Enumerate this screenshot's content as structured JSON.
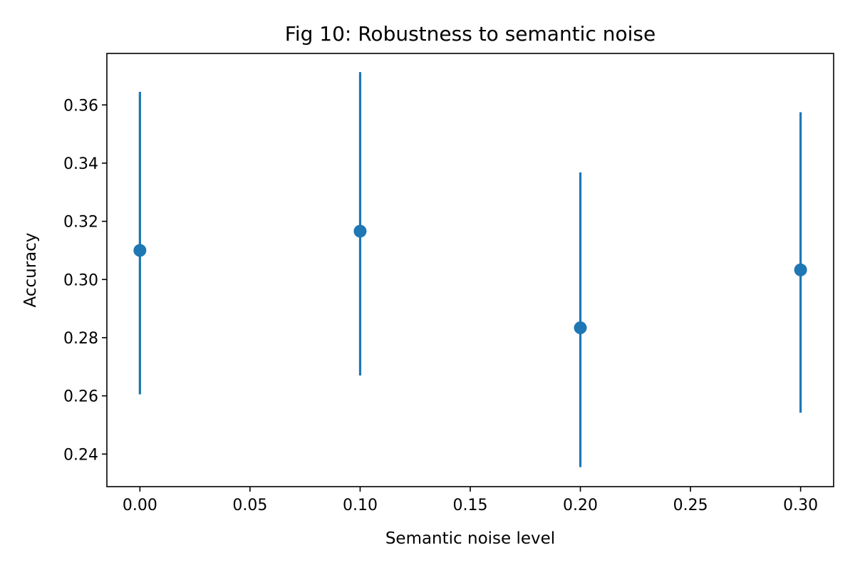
{
  "chart_data": {
    "type": "scatter",
    "title": "Fig 10: Robustness to semantic noise",
    "xlabel": "Semantic noise level",
    "ylabel": "Accuracy",
    "xlim": [
      -0.015,
      0.315
    ],
    "ylim": [
      0.2288,
      0.3777
    ],
    "x_ticks": [
      0.0,
      0.05,
      0.1,
      0.15,
      0.2,
      0.25,
      0.3
    ],
    "x_tick_labels": [
      "0.00",
      "0.05",
      "0.10",
      "0.15",
      "0.20",
      "0.25",
      "0.30"
    ],
    "y_ticks": [
      0.24,
      0.26,
      0.28,
      0.3,
      0.32,
      0.34,
      0.36
    ],
    "y_tick_labels": [
      "0.24",
      "0.26",
      "0.28",
      "0.30",
      "0.32",
      "0.34",
      "0.36"
    ],
    "grid": false,
    "series": [
      {
        "color": "#1f77b4",
        "points": [
          {
            "x": 0.0,
            "y": 0.31,
            "yerr_low": 0.2605,
            "yerr_high": 0.3645
          },
          {
            "x": 0.1,
            "y": 0.3166,
            "yerr_low": 0.267,
            "yerr_high": 0.3713
          },
          {
            "x": 0.2,
            "y": 0.2834,
            "yerr_low": 0.2355,
            "yerr_high": 0.3368
          },
          {
            "x": 0.3,
            "y": 0.3033,
            "yerr_low": 0.2542,
            "yerr_high": 0.3575
          }
        ]
      }
    ]
  }
}
